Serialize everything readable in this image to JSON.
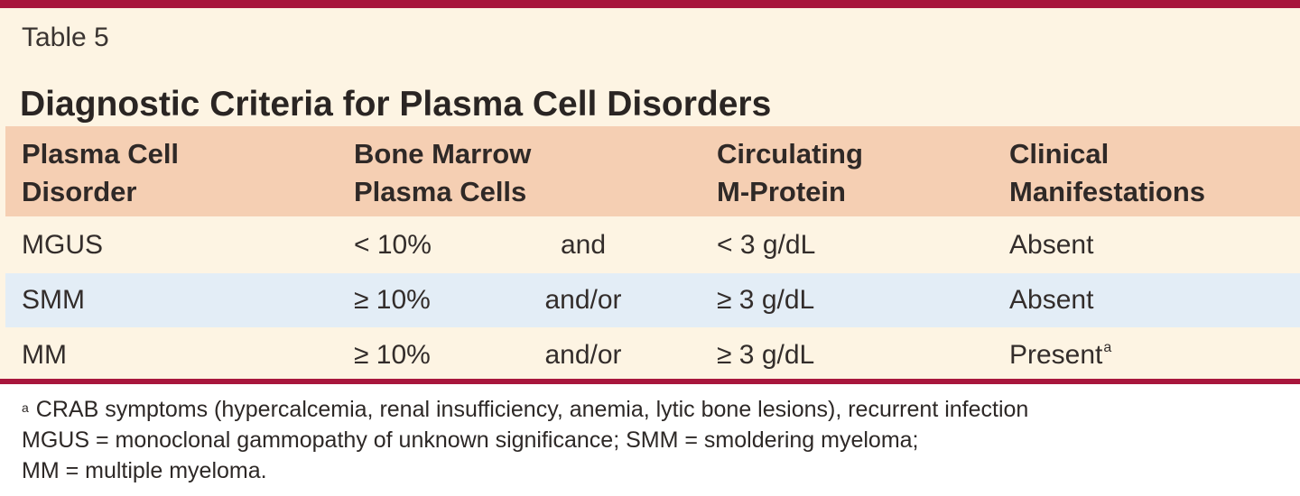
{
  "table": {
    "label": "Table 5",
    "title": "Diagnostic Criteria for Plasma Cell Disorders",
    "colors": {
      "rule": "#a8163c",
      "background": "#fdf4e3",
      "header": "#f5cfb3",
      "highlight_row": "#e3edf6"
    },
    "columns": [
      [
        "Plasma Cell",
        "Disorder"
      ],
      [
        "Bone Marrow",
        "Plasma Cells"
      ],
      [
        "Circulating",
        "M-Protein"
      ],
      [
        "Clinical",
        "Manifestations"
      ]
    ],
    "rows": [
      {
        "disorder": "MGUS",
        "bone_marrow": "< 10%",
        "conjunction": "and",
        "m_protein": "< 3 g/dL",
        "manifestations": "Absent",
        "marker": ""
      },
      {
        "disorder": "SMM",
        "bone_marrow": "≥ 10%",
        "conjunction": "and/or",
        "m_protein": "≥ 3 g/dL",
        "manifestations": "Absent",
        "marker": ""
      },
      {
        "disorder": "MM",
        "bone_marrow": "≥ 10%",
        "conjunction": "and/or",
        "m_protein": "≥ 3 g/dL",
        "manifestations": "Present",
        "marker": "a"
      }
    ],
    "footnotes": {
      "marker": "a",
      "note_a": "CRAB symptoms (hypercalcemia, renal insufficiency, anemia, lytic bone lesions), recurrent infection",
      "abbrev_line1": "MGUS = monoclonal gammopathy of unknown significance; SMM = smoldering myeloma;",
      "abbrev_line2": "MM = multiple myeloma."
    }
  }
}
